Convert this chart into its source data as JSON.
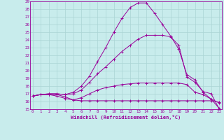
{
  "xlabel": "Windchill (Refroidissement éolien,°C)",
  "bg_color": "#c8ecec",
  "grid_color": "#aad4d4",
  "line_color": "#990099",
  "xmin": 0,
  "xmax": 23,
  "ymin": 15,
  "ymax": 29,
  "curves": [
    [
      16.7,
      16.9,
      16.9,
      16.9,
      16.6,
      16.2,
      16.1,
      16.1,
      16.1,
      16.1,
      16.1,
      16.1,
      16.1,
      16.1,
      16.1,
      16.1,
      16.1,
      16.1,
      16.1,
      16.1,
      16.1,
      16.1,
      16.1,
      15.9
    ],
    [
      16.7,
      16.9,
      16.9,
      16.7,
      16.4,
      16.2,
      16.5,
      17.0,
      17.5,
      17.8,
      18.0,
      18.2,
      18.3,
      18.4,
      18.4,
      18.4,
      18.4,
      18.4,
      18.4,
      18.2,
      17.2,
      16.9,
      16.3,
      15.8
    ],
    [
      16.7,
      16.9,
      17.0,
      17.0,
      16.9,
      17.0,
      17.5,
      18.5,
      19.6,
      20.5,
      21.5,
      22.5,
      23.3,
      24.1,
      24.6,
      24.6,
      24.6,
      24.4,
      23.3,
      19.2,
      18.5,
      17.3,
      17.0,
      15.0
    ],
    [
      16.7,
      16.9,
      17.0,
      17.0,
      16.9,
      17.2,
      18.0,
      19.3,
      21.2,
      23.0,
      25.0,
      26.8,
      28.2,
      28.8,
      28.8,
      27.5,
      26.0,
      24.5,
      22.8,
      19.5,
      18.8,
      17.2,
      16.3,
      15.1
    ]
  ]
}
